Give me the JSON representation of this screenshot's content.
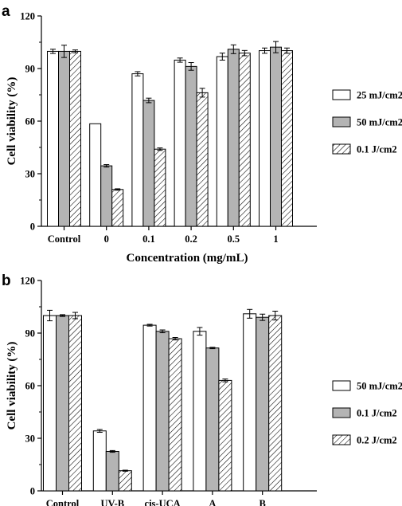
{
  "chart_data": [
    {
      "panel": "a",
      "type": "bar",
      "categories": [
        "Control",
        "0",
        "0.1",
        "0.2",
        "0.5",
        "1"
      ],
      "series": [
        {
          "name": "25 mJ/cm2",
          "pattern": "white",
          "values": [
            99.8,
            58.5,
            87.0,
            94.8,
            96.8,
            100.2
          ],
          "errors": [
            1.2,
            0,
            1.2,
            1.2,
            2.0,
            1.5
          ]
        },
        {
          "name": "50 mJ/cm2",
          "pattern": "gray",
          "values": [
            99.8,
            34.5,
            71.8,
            91.2,
            101.0,
            102.2
          ],
          "errors": [
            3.5,
            0.7,
            1.3,
            2.2,
            2.5,
            3.2
          ]
        },
        {
          "name": "0.1 J/cm2",
          "pattern": "hatch",
          "values": [
            99.8,
            21.0,
            44.0,
            76.2,
            98.8,
            100.2
          ],
          "errors": [
            0.8,
            0.4,
            0.7,
            2.5,
            1.5,
            1.5
          ]
        }
      ],
      "xlabel": "Concentration (mg/mL)",
      "ylabel": "Cell viability (%)",
      "ylim": [
        0,
        120
      ],
      "yticks": [
        "0",
        "30",
        "60",
        "90",
        "120"
      ],
      "legend_position": "right"
    },
    {
      "panel": "b",
      "type": "bar",
      "categories": [
        "Control",
        "UV-B",
        "cis-UCA",
        "A",
        "B"
      ],
      "series": [
        {
          "name": "50 mJ/cm2",
          "pattern": "white",
          "values": [
            100.0,
            34.2,
            94.5,
            91.0,
            101.0
          ],
          "errors": [
            3.0,
            0.8,
            0.5,
            2.2,
            2.5
          ]
        },
        {
          "name": "0.1 J/cm2",
          "pattern": "gray",
          "values": [
            100.0,
            22.5,
            91.0,
            81.5,
            99.0
          ],
          "errors": [
            0.5,
            0.5,
            0.8,
            0.4,
            1.8
          ]
        },
        {
          "name": "0.2 J/cm2",
          "pattern": "hatch",
          "values": [
            100.0,
            11.5,
            86.8,
            63.0,
            100.0
          ],
          "errors": [
            1.8,
            0.3,
            0.7,
            0.8,
            2.5
          ]
        }
      ],
      "xlabel": "",
      "ylabel": "Cell viability (%)",
      "ylim": [
        0,
        120
      ],
      "yticks": [
        "0",
        "30",
        "60",
        "90",
        "120"
      ],
      "legend_position": "right"
    }
  ],
  "colors": {
    "white_bar": "#ffffff",
    "gray_bar": "#b4b4b4",
    "outline": "#000000"
  }
}
